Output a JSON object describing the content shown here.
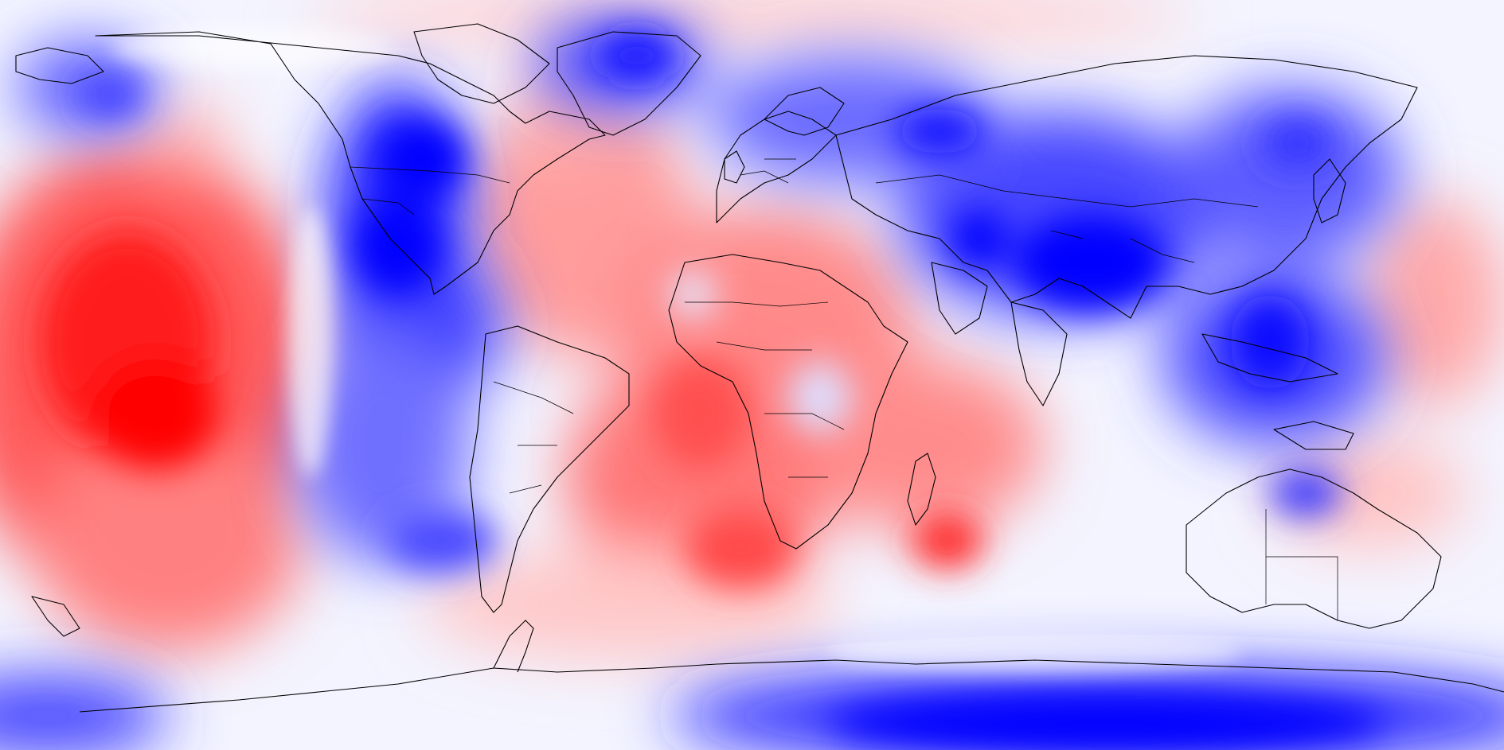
{
  "map": {
    "projection": "equirectangular",
    "field": "anomaly",
    "colormap": {
      "positive": "#ff0000",
      "neutral": "#ffffff",
      "negative": "#0000ff"
    },
    "coastline_color": "#000000",
    "legend": "none"
  }
}
